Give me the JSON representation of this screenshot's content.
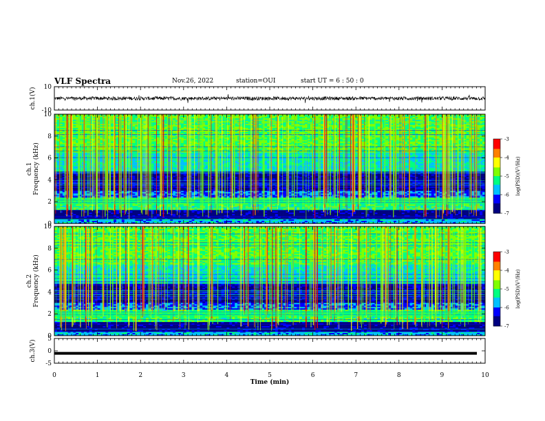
{
  "header": {
    "title": "VLF Spectra",
    "date": "Nov.26, 2022",
    "station": "station=OUI",
    "start_ut": "start  UT =  6 : 50 : 0"
  },
  "chart_data": [
    {
      "type": "line",
      "panel": "waveform-ch1",
      "ylabel": "ch.1(V)",
      "ylim": [
        -10,
        10
      ],
      "yticks": [
        "10",
        "-10"
      ],
      "xlim": [
        0,
        10
      ],
      "series": [
        {
          "values": "noise around 0 V, amplitude approx ±1.5 V with occasional spikes to ±4 V"
        }
      ]
    },
    {
      "type": "heatmap",
      "panel": "spectrogram-ch1",
      "ylabel": "ch.1\nFrequency (kHz)",
      "ylim": [
        0,
        10
      ],
      "yticks": [
        "0",
        "2",
        "4",
        "6",
        "8",
        "10"
      ],
      "xlim": [
        0,
        10
      ],
      "colorbar": {
        "label": "log(PSD)(V²/Hz)",
        "range": [
          -7,
          -3
        ],
        "ticks": [
          "-3",
          "-4",
          "-5",
          "-6",
          "-7"
        ]
      }
    },
    {
      "type": "heatmap",
      "panel": "spectrogram-ch2",
      "ylabel": "ch.2\nFrequency (kHz)",
      "ylim": [
        0,
        10
      ],
      "yticks": [
        "0",
        "2",
        "4",
        "6",
        "8",
        "10"
      ],
      "xlim": [
        0,
        10
      ],
      "colorbar": {
        "label": "log(PSD)(V²/Hz)",
        "range": [
          -7,
          -3
        ],
        "ticks": [
          "-3",
          "-4",
          "-5",
          "-6",
          "-7"
        ]
      }
    },
    {
      "type": "line",
      "panel": "waveform-ch3",
      "ylabel": "ch.3(V)",
      "ylim": [
        -5,
        5
      ],
      "yticks": [
        "5",
        "0",
        "-5"
      ],
      "xlim": [
        0,
        10
      ],
      "series": [
        {
          "values": "constant approx -1 V"
        }
      ]
    }
  ],
  "xaxis": {
    "label": "Time (min)",
    "ticks": [
      "0",
      "1",
      "2",
      "3",
      "4",
      "5",
      "6",
      "7",
      "8",
      "9",
      "10"
    ]
  },
  "colors": {
    "cmap": [
      "#000000",
      "#000080",
      "#0000ff",
      "#00c0ff",
      "#00ff80",
      "#80ff00",
      "#ffff00",
      "#ff8000",
      "#ff0000",
      "#ffffff"
    ]
  }
}
